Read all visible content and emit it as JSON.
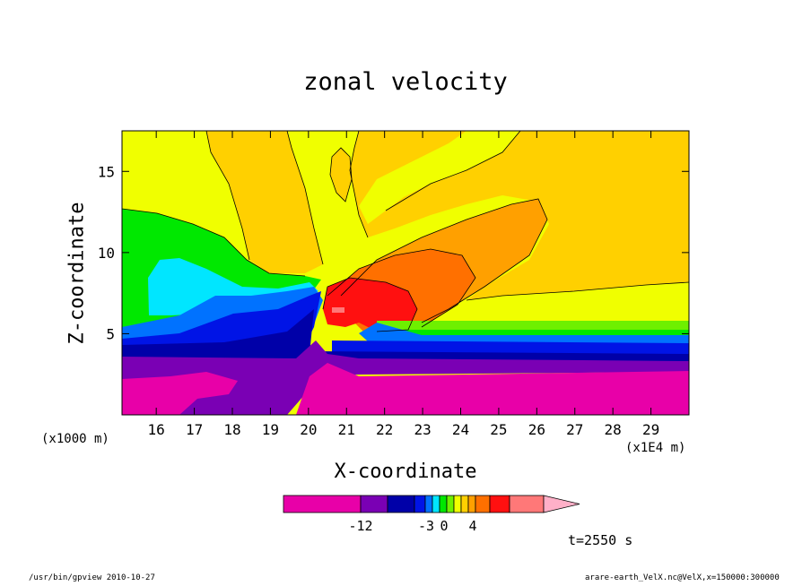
{
  "chart_data": {
    "type": "heatmap",
    "title": "zonal velocity",
    "xlabel": "X-coordinate",
    "ylabel": "Z-coordinate",
    "x_ticks": [
      "16",
      "17",
      "18",
      "19",
      "20",
      "21",
      "22",
      "23",
      "24",
      "25",
      "26",
      "27",
      "28",
      "29"
    ],
    "y_ticks": [
      "5",
      "10",
      "15"
    ],
    "xlim": [
      15.1,
      30.0
    ],
    "ylim": [
      0,
      17.5
    ],
    "x_unit_left": "(x1000 m)",
    "x_scale_right": "(x1E4 m)",
    "time_label": "t=2550 s",
    "colorbar": {
      "tick_labels": [
        "-12",
        "-3",
        "0",
        "4"
      ],
      "colors": [
        "#e800a8",
        "#7a00b4",
        "#0000a8",
        "#0014e6",
        "#0072ff",
        "#00e6ff",
        "#00e800",
        "#6ef000",
        "#f0ff00",
        "#ffd000",
        "#ffa000",
        "#ff7000",
        "#ff1010",
        "#ff7878",
        "#ffb0c8"
      ]
    },
    "regions_description": "contoured zonal velocity field with a strong gradient near x=20-22"
  },
  "footer": {
    "left": "/usr/bin/gpview   2010-10-27",
    "right": "arare-earth_VelX.nc@VelX,x=150000:300000"
  }
}
